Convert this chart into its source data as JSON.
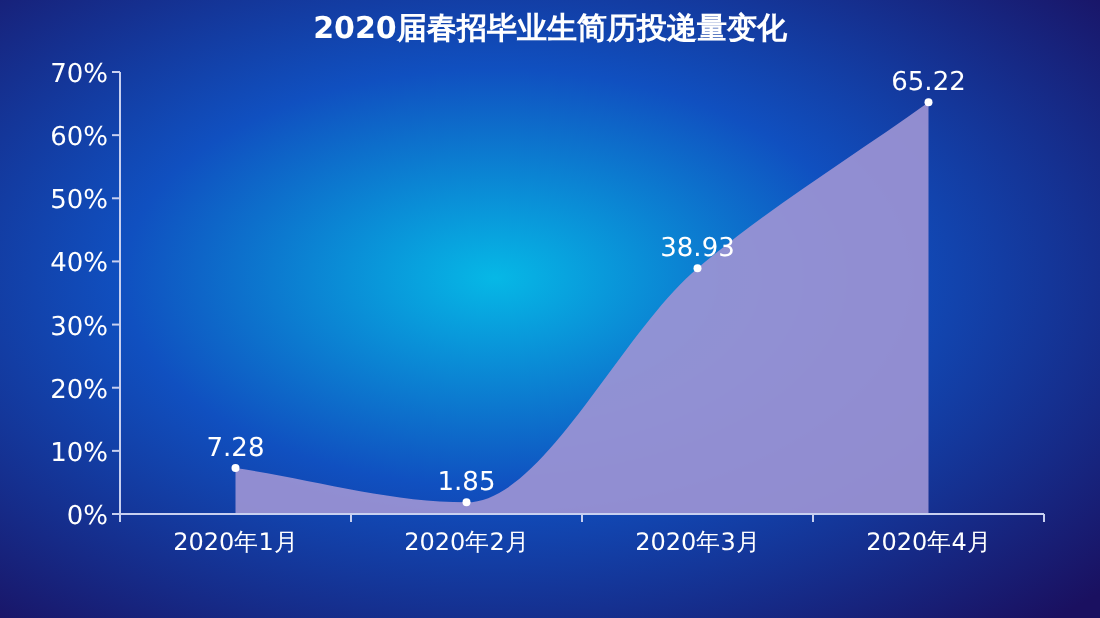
{
  "chart_data": {
    "type": "area",
    "title": "2020届春招毕业生简历投递量变化",
    "categories": [
      "2020年1月",
      "2020年2月",
      "2020年3月",
      "2020年4月"
    ],
    "series": [
      {
        "color": "#9c94d4",
        "values": [
          7.28,
          1.85,
          38.93,
          65.22
        ]
      }
    ],
    "ylim": [
      0,
      70
    ],
    "yticks": [
      {
        "value": 0,
        "label": "0%"
      },
      {
        "value": 10,
        "label": "10%"
      },
      {
        "value": 20,
        "label": "20%"
      },
      {
        "value": 30,
        "label": "30%"
      },
      {
        "value": 40,
        "label": "40%"
      },
      {
        "value": 50,
        "label": "50%"
      },
      {
        "value": 60,
        "label": "60%"
      },
      {
        "value": 70,
        "label": "70%"
      }
    ],
    "grid": false,
    "marker": "circle",
    "data_labels": true
  }
}
